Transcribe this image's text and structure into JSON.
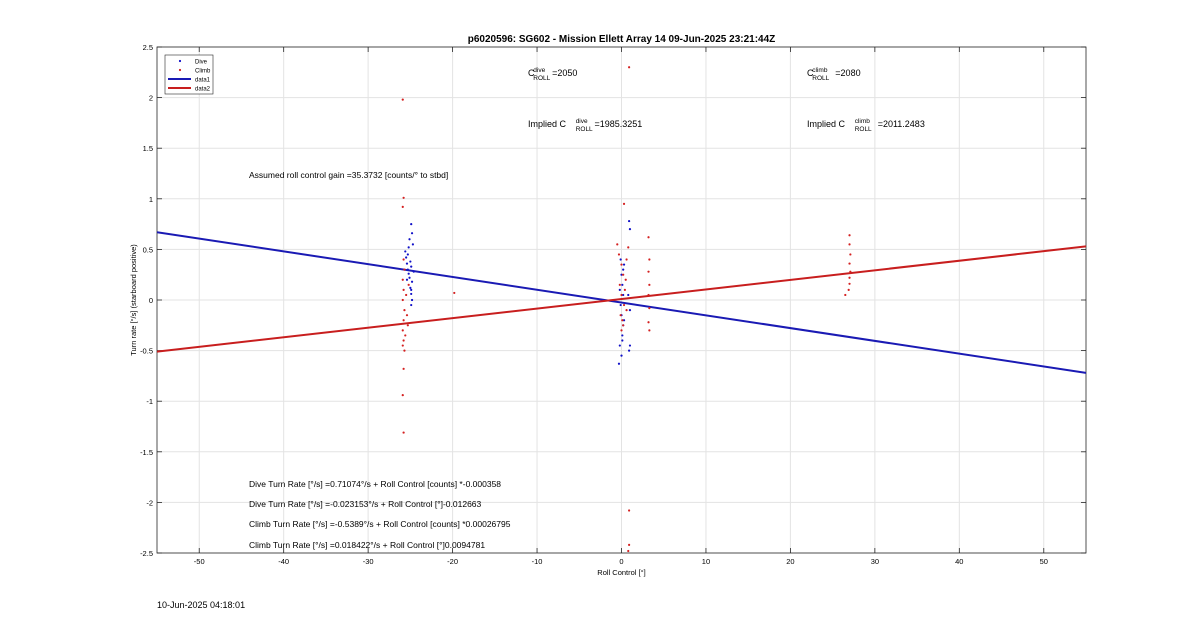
{
  "chart_data": {
    "type": "scatter",
    "title": "p6020596: SG602 - Mission Ellett Array 14 09-Jun-2025 23:21:44Z",
    "xlabel": "Roll Control [°]",
    "ylabel": "Turn rate [°/s] (starboard positive)",
    "xlim": [
      -55,
      55
    ],
    "ylim": [
      -2.5,
      2.5
    ],
    "xticks": [
      -50,
      -40,
      -30,
      -20,
      -10,
      0,
      10,
      20,
      30,
      40,
      50
    ],
    "yticks": [
      -2.5,
      -2,
      -1.5,
      -1,
      -0.5,
      0,
      0.5,
      1,
      1.5,
      2,
      2.5
    ],
    "xtick_labels": [
      "-50",
      "-40",
      "-30",
      "-20",
      "-10",
      "0",
      "10",
      "20",
      "30",
      "40",
      "50"
    ],
    "ytick_labels": [
      "-2.5",
      "-2",
      "-1.5",
      "-1",
      "-0.5",
      "0",
      "0.5",
      "1",
      "1.5",
      "2",
      "2.5"
    ],
    "grid": true,
    "legend_position": "top-left",
    "colors": {
      "dive": "#1010c8",
      "climb": "#d42020",
      "line_dive": "#1a1ab4",
      "line_climb": "#c81e1e",
      "grid": "#e3e3e3"
    },
    "series": [
      {
        "name": "Dive",
        "kind": "scatter",
        "points": [
          [
            -25.6,
            0.48
          ],
          [
            -25.5,
            0.42
          ],
          [
            -25.4,
            0.36
          ],
          [
            -25.3,
            0.3
          ],
          [
            -25.2,
            0.26
          ],
          [
            -25.1,
            0.22
          ],
          [
            -25.0,
            0.12
          ],
          [
            -24.9,
            0.06
          ],
          [
            -24.9,
            -0.05
          ],
          [
            -24.8,
            0.0
          ],
          [
            -24.7,
            0.55
          ],
          [
            -24.8,
            0.66
          ],
          [
            -24.9,
            0.75
          ],
          [
            -25.0,
            0.38
          ],
          [
            -24.6,
            0.28
          ],
          [
            -25.4,
            0.2
          ],
          [
            -25.3,
            0.45
          ],
          [
            -25.2,
            0.52
          ],
          [
            -24.9,
            0.33
          ],
          [
            -24.8,
            0.18
          ],
          [
            -25.1,
            0.6
          ],
          [
            -24.9,
            0.1
          ],
          [
            0.0,
            0.25
          ],
          [
            0.1,
            0.15
          ],
          [
            0.2,
            0.05
          ],
          [
            -0.1,
            -0.05
          ],
          [
            0.0,
            -0.15
          ],
          [
            0.2,
            -0.25
          ],
          [
            0.1,
            -0.35
          ],
          [
            -0.2,
            -0.45
          ],
          [
            0.3,
            0.35
          ],
          [
            0.0,
            -0.55
          ],
          [
            -0.3,
            -0.63
          ],
          [
            -0.2,
            0.1
          ],
          [
            0.1,
            -0.4
          ],
          [
            0.3,
            -0.2
          ],
          [
            -0.1,
            0.4
          ],
          [
            0.2,
            0.3
          ],
          [
            0.9,
            0.78
          ],
          [
            1.0,
            0.7
          ],
          [
            1.0,
            -0.45
          ],
          [
            0.9,
            -0.5
          ],
          [
            0.8,
            0.05
          ],
          [
            1.0,
            -0.1
          ]
        ]
      },
      {
        "name": "Climb",
        "kind": "scatter",
        "points": [
          [
            -25.9,
            1.98
          ],
          [
            -25.8,
            1.01
          ],
          [
            -25.9,
            0.92
          ],
          [
            -25.8,
            0.4
          ],
          [
            -25.7,
            0.3
          ],
          [
            -25.9,
            0.2
          ],
          [
            -25.8,
            0.1
          ],
          [
            -25.9,
            0.0
          ],
          [
            -25.7,
            -0.1
          ],
          [
            -25.8,
            -0.2
          ],
          [
            -25.9,
            -0.3
          ],
          [
            -25.8,
            -0.4
          ],
          [
            -25.7,
            -0.5
          ],
          [
            -25.8,
            -0.68
          ],
          [
            -25.9,
            -0.94
          ],
          [
            -25.8,
            -1.31
          ],
          [
            -25.4,
            -0.15
          ],
          [
            -25.3,
            -0.25
          ],
          [
            -25.6,
            -0.35
          ],
          [
            -25.5,
            0.05
          ],
          [
            -25.2,
            0.15
          ],
          [
            -25.9,
            -0.45
          ],
          [
            -19.8,
            0.07
          ],
          [
            -0.5,
            0.55
          ],
          [
            -0.3,
            0.45
          ],
          [
            0.0,
            0.35
          ],
          [
            0.2,
            0.25
          ],
          [
            -0.2,
            0.15
          ],
          [
            0.0,
            0.05
          ],
          [
            0.3,
            -0.05
          ],
          [
            -0.1,
            -0.15
          ],
          [
            0.2,
            -0.25
          ],
          [
            0.0,
            -0.3
          ],
          [
            0.4,
            0.1
          ],
          [
            0.6,
            -0.1
          ],
          [
            0.5,
            0.2
          ],
          [
            0.1,
            -0.2
          ],
          [
            0.6,
            0.4
          ],
          [
            0.8,
            0.52
          ],
          [
            0.3,
            0.95
          ],
          [
            0.9,
            -2.08
          ],
          [
            0.9,
            -2.42
          ],
          [
            0.8,
            -2.48
          ],
          [
            0.9,
            2.3
          ],
          [
            3.2,
            0.62
          ],
          [
            3.3,
            0.4
          ],
          [
            3.2,
            0.28
          ],
          [
            3.3,
            0.15
          ],
          [
            3.2,
            0.05
          ],
          [
            3.3,
            -0.08
          ],
          [
            3.2,
            -0.22
          ],
          [
            3.3,
            -0.3
          ],
          [
            27.0,
            0.64
          ],
          [
            27.0,
            0.55
          ],
          [
            27.1,
            0.45
          ],
          [
            27.0,
            0.36
          ],
          [
            27.1,
            0.28
          ],
          [
            27.0,
            0.22
          ],
          [
            27.0,
            0.16
          ],
          [
            26.9,
            0.1
          ],
          [
            26.5,
            0.05
          ]
        ]
      },
      {
        "name": "data1",
        "kind": "line",
        "points": [
          [
            -55,
            0.67
          ],
          [
            55,
            -0.72
          ]
        ]
      },
      {
        "name": "data2",
        "kind": "line",
        "points": [
          [
            -55,
            -0.51
          ],
          [
            55,
            0.53
          ]
        ]
      }
    ],
    "annotations": {
      "c_dive": {
        "base": "C",
        "sup": "dive",
        "sub": "ROLL",
        "value": "=2050"
      },
      "c_climb": {
        "base": "C",
        "sup": "climb",
        "sub": "ROLL",
        "value": "=2080"
      },
      "implied_dive": {
        "prefix": "Implied C",
        "sup": "dive",
        "sub": "ROLL",
        "value": "=1985.3251"
      },
      "implied_climb": {
        "prefix": "Implied C",
        "sup": "climb",
        "sub": "ROLL",
        "value": "=2011.2483"
      },
      "gain": "Assumed roll control gain =35.3732 [counts/° to stbd]",
      "eq1": "Dive Turn Rate [°/s] =0.71074°/s + Roll Control [counts] *-0.000358",
      "eq2": "Dive Turn Rate [°/s] =-0.023153°/s + Roll Control [°]-0.012663",
      "eq3": "Climb Turn Rate [°/s] =-0.5389°/s + Roll Control [counts] *0.00026795",
      "eq4": "Climb Turn Rate [°/s] =0.018422°/s + Roll Control [°]0.0094781"
    }
  },
  "footer": {
    "timestamp": "10-Jun-2025 04:18:01"
  }
}
